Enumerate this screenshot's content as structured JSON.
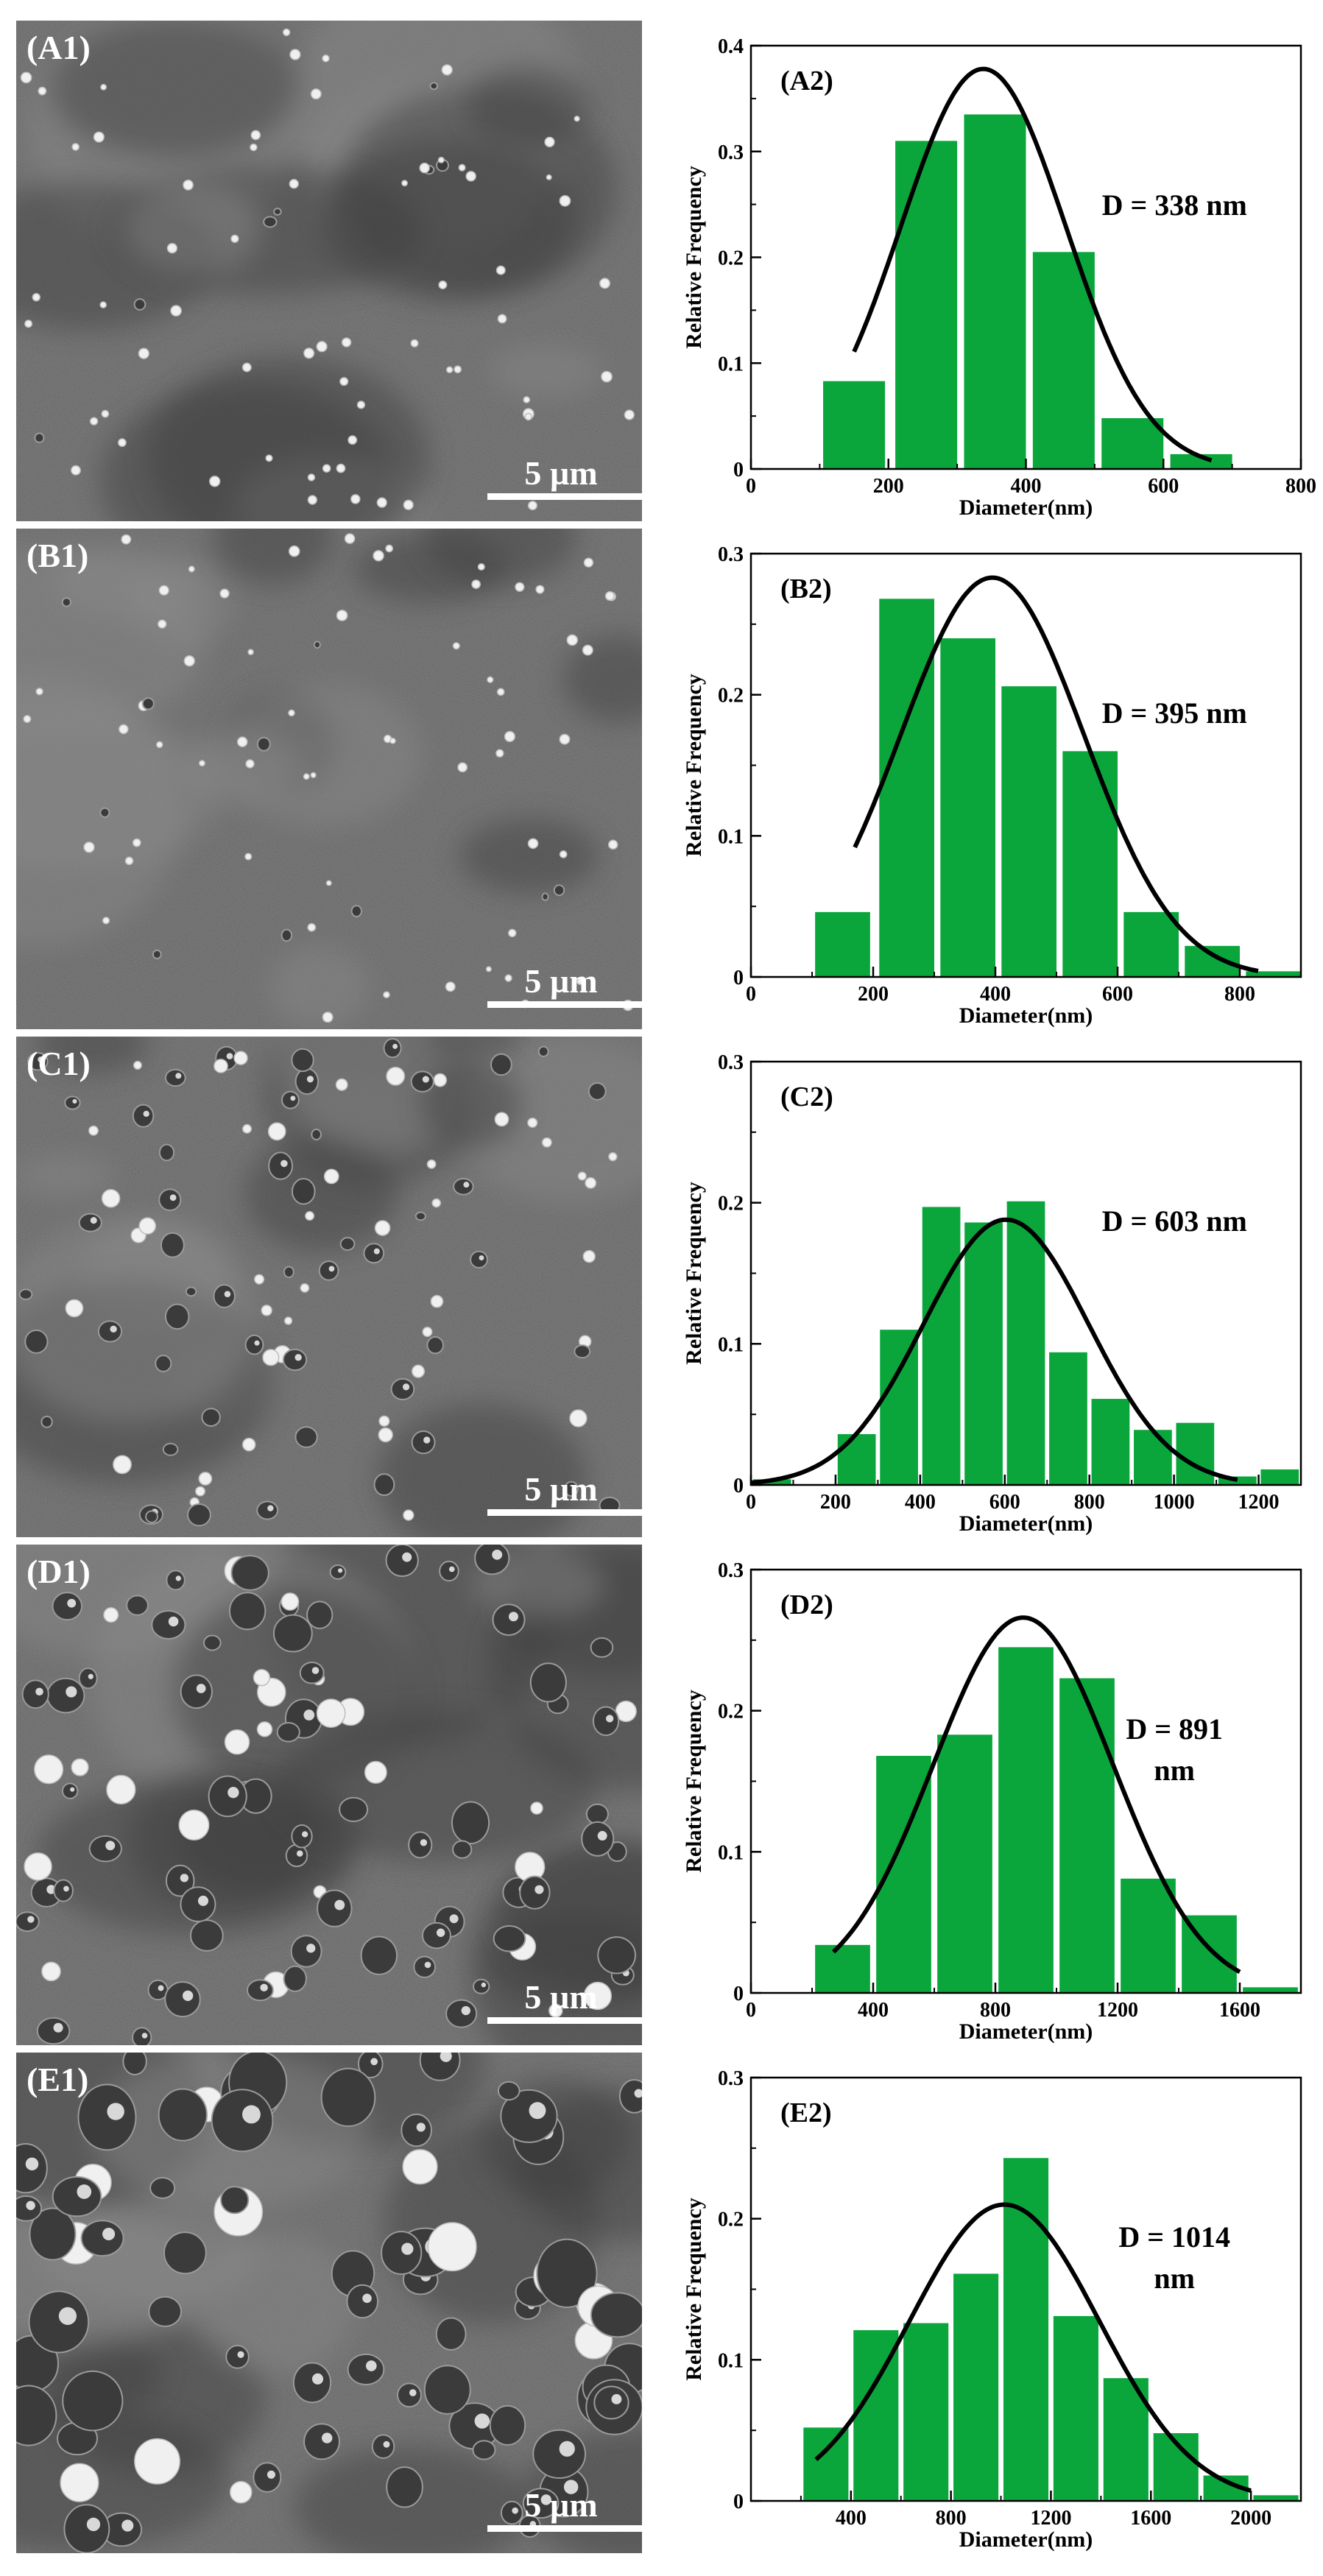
{
  "colors": {
    "bar": "#0aa63c",
    "curve": "#000000",
    "sem_base": "#5a5a5a",
    "scale_bar": "#ffffff"
  },
  "rows": [
    {
      "sem": {
        "label": "(A1)",
        "scale": "5 µm",
        "pores": "sparse-small"
      },
      "chart_data": {
        "type": "bar",
        "panel_label": "(A2)",
        "ylabel": "Relative Frequency",
        "xlabel": "Diameter(nm)",
        "xlim": [
          0,
          800
        ],
        "ylim": [
          0,
          0.4
        ],
        "xticks": [
          "0",
          "200",
          "400",
          "600",
          "800"
        ],
        "yticks": [
          "0",
          "0.1",
          "0.2",
          "0.3",
          "0.4"
        ],
        "bins": [
          {
            "x0": 105,
            "x1": 195,
            "y": 0.083
          },
          {
            "x0": 210,
            "x1": 300,
            "y": 0.31
          },
          {
            "x0": 310,
            "x1": 400,
            "y": 0.335
          },
          {
            "x0": 410,
            "x1": 500,
            "y": 0.205
          },
          {
            "x0": 510,
            "x1": 600,
            "y": 0.048
          },
          {
            "x0": 610,
            "x1": 700,
            "y": 0.014
          }
        ],
        "fit": {
          "type": "gaussian",
          "mean": 338,
          "sigma": 120,
          "amp": 0.378,
          "xmin": 150,
          "xmax": 670
        },
        "annotation": [
          "D = 338 nm"
        ]
      }
    },
    {
      "sem": {
        "label": "(B1)",
        "scale": "5 µm",
        "pores": "sparse-small"
      },
      "chart_data": {
        "type": "bar",
        "panel_label": "(B2)",
        "ylabel": "Relative Frequency",
        "xlabel": "Diameter(nm)",
        "xlim": [
          0,
          900
        ],
        "ylim": [
          0,
          0.3
        ],
        "xticks": [
          "0",
          "200",
          "400",
          "600",
          "800"
        ],
        "xtick_values": [
          0,
          200,
          400,
          600,
          800
        ],
        "yticks": [
          "0",
          "0.1",
          "0.2",
          "0.3"
        ],
        "bins": [
          {
            "x0": 105,
            "x1": 195,
            "y": 0.046
          },
          {
            "x0": 210,
            "x1": 300,
            "y": 0.268
          },
          {
            "x0": 310,
            "x1": 400,
            "y": 0.24
          },
          {
            "x0": 410,
            "x1": 500,
            "y": 0.206
          },
          {
            "x0": 510,
            "x1": 600,
            "y": 0.16
          },
          {
            "x0": 610,
            "x1": 700,
            "y": 0.046
          },
          {
            "x0": 710,
            "x1": 800,
            "y": 0.022
          },
          {
            "x0": 810,
            "x1": 900,
            "y": 0.004
          }
        ],
        "fit": {
          "type": "gaussian",
          "mean": 395,
          "sigma": 150,
          "amp": 0.283,
          "xmin": 170,
          "xmax": 830
        },
        "annotation": [
          "D = 395 nm"
        ]
      }
    },
    {
      "sem": {
        "label": "(C1)",
        "scale": "5 µm",
        "pores": "medium"
      },
      "chart_data": {
        "type": "bar",
        "panel_label": "(C2)",
        "ylabel": "Relative Frequency",
        "xlabel": "Diameter(nm)",
        "xlim": [
          0,
          1300
        ],
        "ylim": [
          0,
          0.3
        ],
        "xticks": [
          "0",
          "200",
          "400",
          "600",
          "800",
          "1000",
          "1200"
        ],
        "yticks": [
          "0",
          "0.1",
          "0.2",
          "0.3"
        ],
        "bins": [
          {
            "x0": 5,
            "x1": 95,
            "y": 0.004
          },
          {
            "x0": 205,
            "x1": 295,
            "y": 0.036
          },
          {
            "x0": 305,
            "x1": 395,
            "y": 0.11
          },
          {
            "x0": 405,
            "x1": 495,
            "y": 0.197
          },
          {
            "x0": 505,
            "x1": 595,
            "y": 0.186
          },
          {
            "x0": 605,
            "x1": 695,
            "y": 0.201
          },
          {
            "x0": 705,
            "x1": 795,
            "y": 0.094
          },
          {
            "x0": 805,
            "x1": 895,
            "y": 0.061
          },
          {
            "x0": 905,
            "x1": 995,
            "y": 0.039
          },
          {
            "x0": 1005,
            "x1": 1095,
            "y": 0.044
          },
          {
            "x0": 1105,
            "x1": 1195,
            "y": 0.006
          },
          {
            "x0": 1205,
            "x1": 1295,
            "y": 0.011
          }
        ],
        "fit": {
          "type": "gaussian",
          "mean": 603,
          "sigma": 195,
          "amp": 0.188,
          "xmin": 0,
          "xmax": 1150
        },
        "annotation": [
          "D = 603 nm"
        ]
      }
    },
    {
      "sem": {
        "label": "(D1)",
        "scale": "5 µm",
        "pores": "large"
      },
      "chart_data": {
        "type": "bar",
        "panel_label": "(D2)",
        "ylabel": "Relative Frequency",
        "xlabel": "Diameter(nm)",
        "xlim": [
          0,
          1800
        ],
        "ylim": [
          0,
          0.3
        ],
        "xticks": [
          "0",
          "400",
          "800",
          "1200",
          "1600"
        ],
        "yticks": [
          "0",
          "0.1",
          "0.2",
          "0.3"
        ],
        "bins": [
          {
            "x0": 210,
            "x1": 390,
            "y": 0.034
          },
          {
            "x0": 410,
            "x1": 590,
            "y": 0.168
          },
          {
            "x0": 610,
            "x1": 790,
            "y": 0.183
          },
          {
            "x0": 810,
            "x1": 990,
            "y": 0.245
          },
          {
            "x0": 1010,
            "x1": 1190,
            "y": 0.223
          },
          {
            "x0": 1210,
            "x1": 1390,
            "y": 0.081
          },
          {
            "x0": 1410,
            "x1": 1590,
            "y": 0.055
          },
          {
            "x0": 1610,
            "x1": 1790,
            "y": 0.004
          }
        ],
        "fit": {
          "type": "gaussian",
          "mean": 891,
          "sigma": 295,
          "amp": 0.266,
          "xmin": 270,
          "xmax": 1600
        },
        "annotation": [
          "D = 891",
          "nm"
        ]
      }
    },
    {
      "sem": {
        "label": "(E1)",
        "scale": "5 µm",
        "pores": "very-large"
      },
      "chart_data": {
        "type": "bar",
        "panel_label": "(E2)",
        "ylabel": "Relative Frequency",
        "xlabel": "Diameter(nm)",
        "xlim": [
          0,
          2200
        ],
        "ylim": [
          0,
          0.3
        ],
        "xticks": [
          "400",
          "800",
          "1200",
          "1600",
          "2000"
        ],
        "xtick_values": [
          400,
          800,
          1200,
          1600,
          2000
        ],
        "yticks": [
          "0",
          "0.1",
          "0.2",
          "0.3"
        ],
        "bins": [
          {
            "x0": 210,
            "x1": 390,
            "y": 0.052
          },
          {
            "x0": 410,
            "x1": 590,
            "y": 0.121
          },
          {
            "x0": 610,
            "x1": 790,
            "y": 0.126
          },
          {
            "x0": 810,
            "x1": 990,
            "y": 0.161
          },
          {
            "x0": 1010,
            "x1": 1190,
            "y": 0.243
          },
          {
            "x0": 1210,
            "x1": 1390,
            "y": 0.131
          },
          {
            "x0": 1410,
            "x1": 1590,
            "y": 0.087
          },
          {
            "x0": 1610,
            "x1": 1790,
            "y": 0.048
          },
          {
            "x0": 1810,
            "x1": 1990,
            "y": 0.018
          },
          {
            "x0": 2010,
            "x1": 2190,
            "y": 0.004
          }
        ],
        "fit": {
          "type": "gaussian",
          "mean": 1014,
          "sigma": 380,
          "amp": 0.21,
          "xmin": 260,
          "xmax": 2000
        },
        "annotation": [
          "D = 1014",
          "nm"
        ]
      }
    }
  ]
}
